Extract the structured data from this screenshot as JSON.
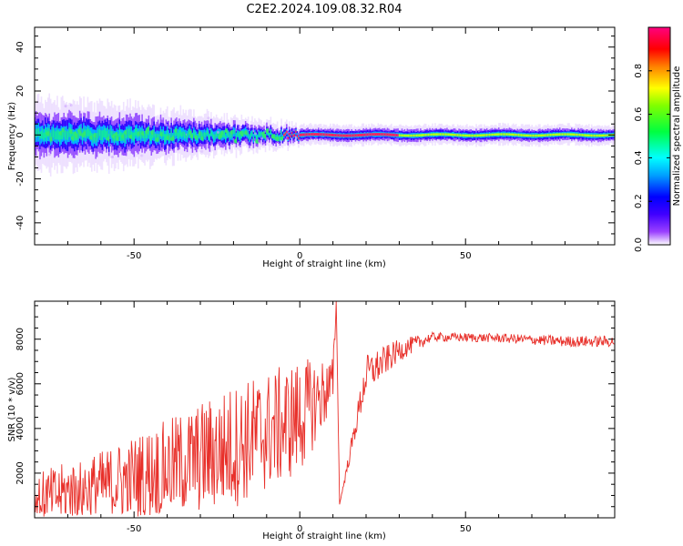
{
  "title": "C2E2.2024.109.08.32.R04",
  "chart_data": [
    {
      "type": "heatmap",
      "xlabel": "Height of straight line (km)",
      "ylabel": "Frequency (Hz)",
      "xlim": [
        -80,
        95
      ],
      "ylim": [
        -50,
        49
      ],
      "xticks": [
        -50,
        0,
        50
      ],
      "yticks": [
        -40,
        -20,
        0,
        20,
        40
      ],
      "grid": false,
      "colorbar": {
        "label": "Normalized spectral amplitude",
        "range": [
          0.0,
          1.0
        ],
        "ticks": [
          "0.0",
          "0.2",
          "0.4",
          "0.6",
          "0.8"
        ],
        "colormap": [
          "#ffffff",
          "#7d00ff",
          "#0000ff",
          "#00c8ff",
          "#00ffff",
          "#00ff00",
          "#ffff00",
          "#ff8000",
          "#ff0000",
          "#ff0080"
        ]
      },
      "features": {
        "spread_core_hz_at_x": [
          {
            "x": -80,
            "halfwidth": 7
          },
          {
            "x": -50,
            "halfwidth": 6
          },
          {
            "x": -25,
            "halfwidth": 4
          },
          {
            "x": 0,
            "halfwidth": 2
          },
          {
            "x": 50,
            "halfwidth": 2
          },
          {
            "x": 95,
            "halfwidth": 2
          }
        ],
        "peak_band_x": [
          -5,
          30
        ]
      }
    },
    {
      "type": "line",
      "xlabel": "Height of straight line (km)",
      "ylabel": "SNR (10 * v/v)",
      "xlim": [
        -80,
        95
      ],
      "ylim": [
        0,
        9700
      ],
      "xticks": [
        -50,
        0,
        50
      ],
      "yticks": [
        2000,
        4000,
        6000,
        8000
      ],
      "grid": false,
      "series_color": "#e8302a",
      "envelope": [
        {
          "x": -80,
          "mean": 800,
          "spread": 1200
        },
        {
          "x": -60,
          "mean": 1400,
          "spread": 1600
        },
        {
          "x": -40,
          "mean": 2200,
          "spread": 2200
        },
        {
          "x": -20,
          "mean": 3200,
          "spread": 2800
        },
        {
          "x": 0,
          "mean": 4500,
          "spread": 2600
        },
        {
          "x": 10,
          "mean": 6000,
          "spread": 1200
        },
        {
          "x": 11,
          "mean": 9700,
          "spread": 0
        },
        {
          "x": 12,
          "mean": 600,
          "spread": 0
        },
        {
          "x": 20,
          "mean": 6400,
          "spread": 900
        },
        {
          "x": 30,
          "mean": 7500,
          "spread": 500
        },
        {
          "x": 40,
          "mean": 8100,
          "spread": 200
        },
        {
          "x": 60,
          "mean": 8050,
          "spread": 200
        },
        {
          "x": 80,
          "mean": 7900,
          "spread": 250
        },
        {
          "x": 95,
          "mean": 7900,
          "spread": 250
        }
      ]
    }
  ]
}
